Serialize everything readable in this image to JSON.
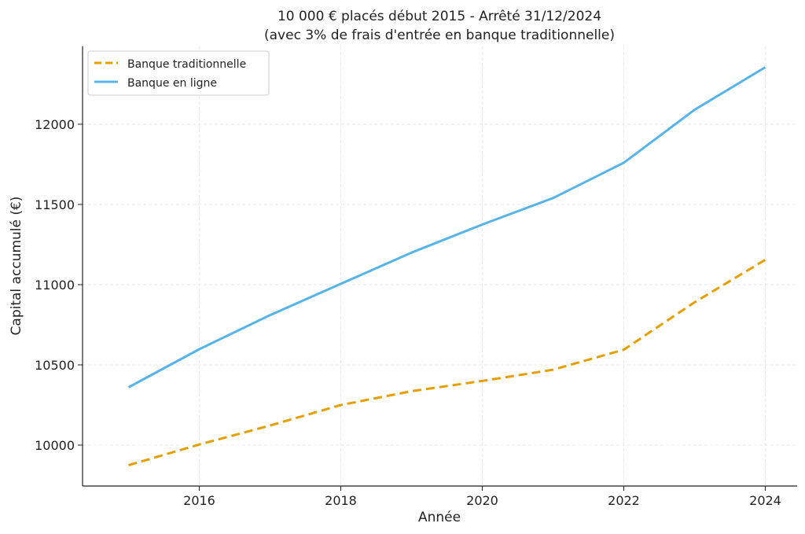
{
  "chart_data": {
    "type": "line",
    "title": "10 000 € placés début 2015 - Arrêté 31/12/2024",
    "subtitle": "(avec 3% de frais d'entrée en banque traditionnelle)",
    "xlabel": "Année",
    "ylabel": "Capital accumulé (€)",
    "x": [
      2015,
      2016,
      2017,
      2018,
      2019,
      2020,
      2021,
      2022,
      2023,
      2024
    ],
    "xlim": [
      2014.35,
      2024.45
    ],
    "ylim": [
      9745,
      12485
    ],
    "xticks": [
      "2016",
      "2018",
      "2020",
      "2022",
      "2024"
    ],
    "yticks": [
      "10000",
      "10500",
      "11000",
      "11500",
      "12000"
    ],
    "grid": true,
    "legend_position": "top-left",
    "series": [
      {
        "name": "Banque traditionnelle",
        "color": "#E69F00",
        "style": "dashed",
        "values": [
          9875,
          10004,
          10122,
          10250,
          10336,
          10400,
          10470,
          10595,
          10890,
          11155
        ]
      },
      {
        "name": "Banque en ligne",
        "color": "#56B4E9",
        "style": "solid",
        "values": [
          10360,
          10598,
          10810,
          11005,
          11200,
          11375,
          11540,
          11760,
          12090,
          12355
        ]
      }
    ]
  }
}
